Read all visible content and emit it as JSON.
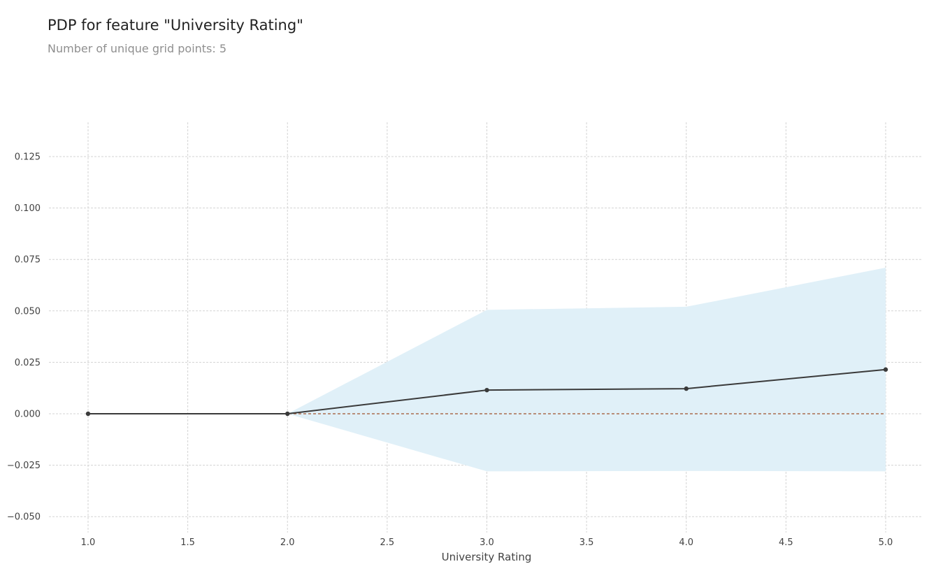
{
  "chart_data": {
    "type": "line",
    "title": "PDP for feature \"University Rating\"",
    "subtitle": "Number of unique grid points: 5",
    "xlabel": "University Rating",
    "ylabel": "",
    "xlim": [
      0.8,
      5.2
    ],
    "ylim": [
      -0.055,
      0.142
    ],
    "xticks": [
      1.0,
      1.5,
      2.0,
      2.5,
      3.0,
      3.5,
      4.0,
      4.5,
      5.0
    ],
    "xtick_labels": [
      "1.0",
      "1.5",
      "2.0",
      "2.5",
      "3.0",
      "3.5",
      "4.0",
      "4.5",
      "5.0"
    ],
    "yticks": [
      -0.05,
      -0.025,
      0.0,
      0.025,
      0.05,
      0.075,
      0.1,
      0.125
    ],
    "ytick_labels": [
      "−0.050",
      "−0.025",
      "0.000",
      "0.025",
      "0.050",
      "0.075",
      "0.100",
      "0.125"
    ],
    "grid": true,
    "series": [
      {
        "x": [
          1.0,
          2.0,
          3.0,
          4.0,
          5.0
        ],
        "values": [
          0.0,
          0.0,
          0.0115,
          0.0122,
          0.0215
        ],
        "lower": [
          0.0,
          0.0,
          -0.028,
          -0.0278,
          -0.028
        ],
        "upper": [
          0.0,
          0.0,
          0.0505,
          0.052,
          0.071
        ]
      }
    ],
    "reference_line": 0.0,
    "colors": {
      "line": "#3a3a3a",
      "band": "#e0f0f8",
      "reference": "#a0522d",
      "grid": "#d3d3d3"
    }
  }
}
